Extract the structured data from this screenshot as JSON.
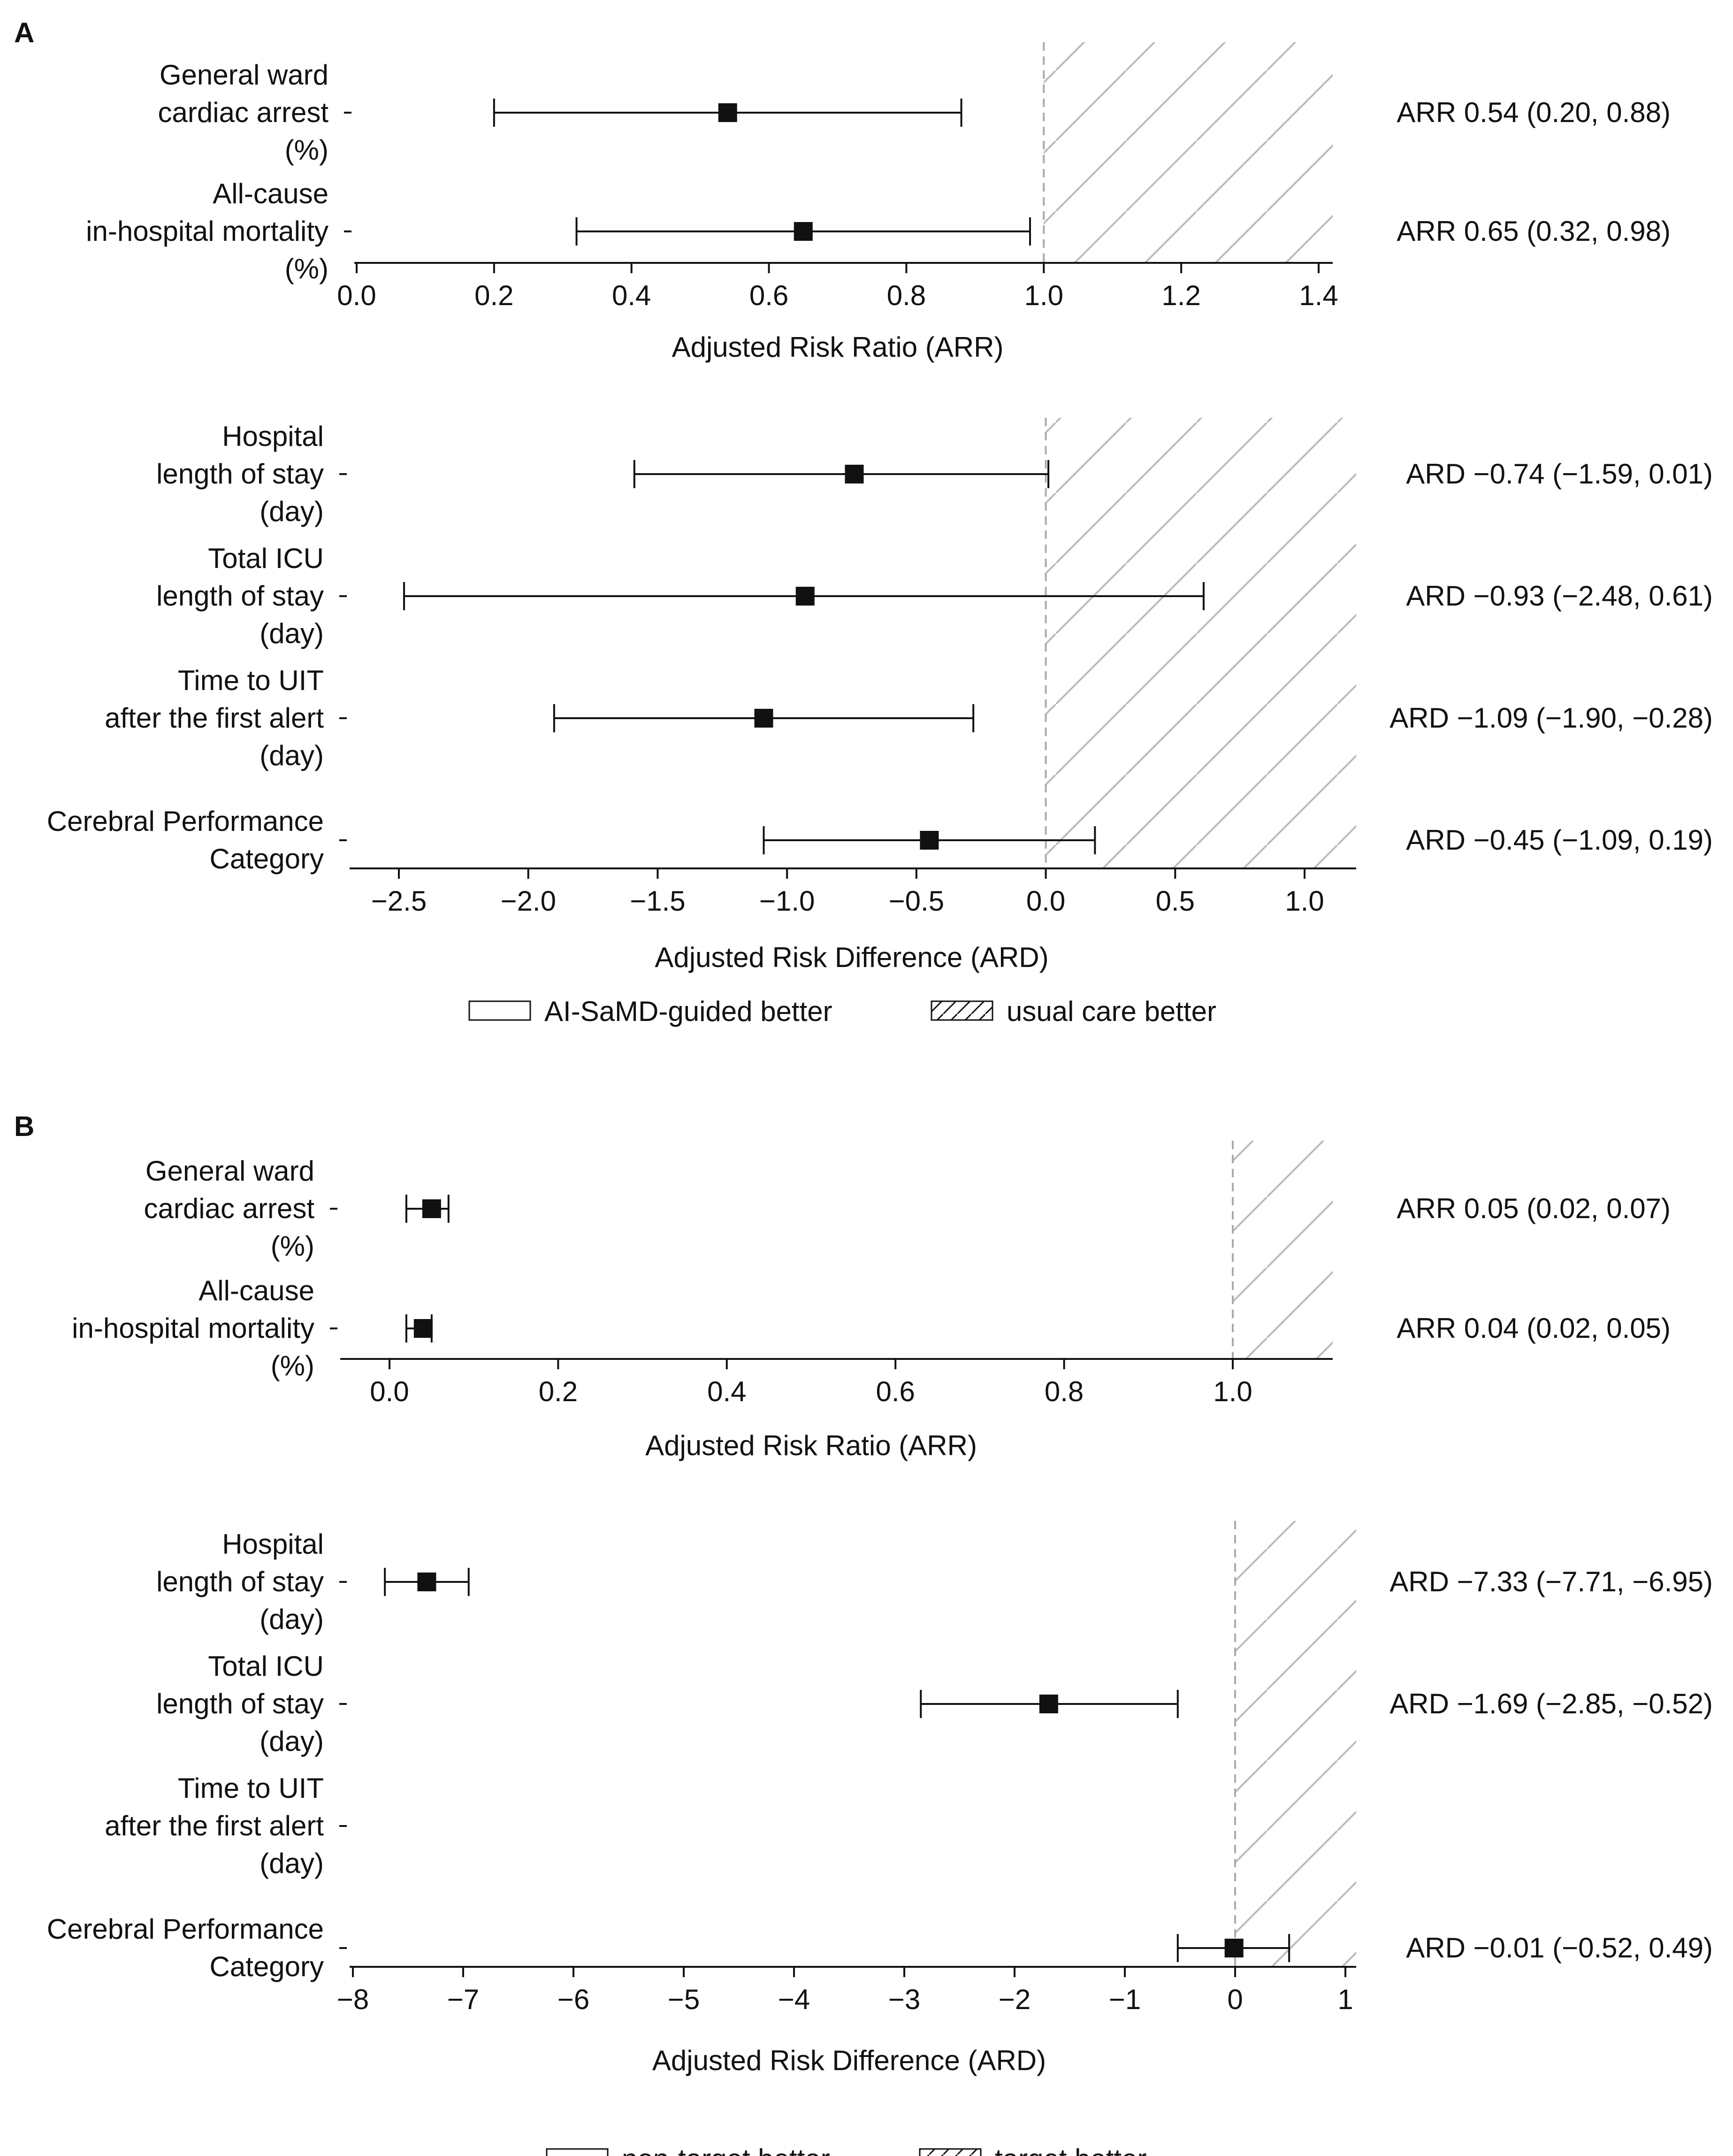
{
  "colors": {
    "ink": "#111111",
    "hatch": "#bbbbbb",
    "reference_line": "#aaaaaa",
    "background": "#ffffff"
  },
  "panels": [
    {
      "letter": "A",
      "legend": {
        "left_label": "AI-SaMD-guided better",
        "right_label": "usual care better"
      },
      "subplots": [
        {
          "id": "A-ratio",
          "xlabel": "Adjusted Risk Ratio (ARR)",
          "xlim": [
            -0.05,
            1.43
          ],
          "ticks": [
            0.0,
            0.2,
            0.4,
            0.6,
            0.8,
            1.0,
            1.2,
            1.4
          ],
          "tick_labels": [
            "0.0",
            "0.2",
            "0.4",
            "0.6",
            "0.8",
            "1.0",
            "1.2",
            "1.4"
          ],
          "reference": 1.0,
          "rows": [
            {
              "label": [
                "General ward",
                "cardiac arrest",
                "(%)"
              ],
              "estimate": 0.54,
              "lower": 0.2,
              "upper": 0.88,
              "annotation": "ARR 0.54 (0.20, 0.88)"
            },
            {
              "label": [
                "All-cause",
                "in-hospital mortality",
                "(%)"
              ],
              "estimate": 0.65,
              "lower": 0.32,
              "upper": 0.98,
              "annotation": "ARR 0.65 (0.32, 0.98)"
            }
          ]
        },
        {
          "id": "A-diff",
          "xlabel": "Adjusted Risk Difference (ARD)",
          "xlim": [
            -2.7,
            1.2
          ],
          "ticks": [
            -2.5,
            -2.0,
            -1.5,
            -1.0,
            -0.5,
            0.0,
            0.5,
            1.0
          ],
          "tick_labels": [
            "−2.5",
            "−2.0",
            "−1.5",
            "−1.0",
            "−0.5",
            "0.0",
            "0.5",
            "1.0"
          ],
          "reference": 0.0,
          "rows": [
            {
              "label": [
                "Hospital",
                "length of stay",
                "(day)"
              ],
              "estimate": -0.74,
              "lower": -1.59,
              "upper": 0.01,
              "annotation": "ARD −0.74 (−1.59, 0.01)"
            },
            {
              "label": [
                "Total ICU",
                "length of stay",
                "(day)"
              ],
              "estimate": -0.93,
              "lower": -2.48,
              "upper": 0.61,
              "annotation": "ARD −0.93 (−2.48, 0.61)"
            },
            {
              "label": [
                "Time to UIT",
                "after the first alert",
                "(day)"
              ],
              "estimate": -1.09,
              "lower": -1.9,
              "upper": -0.28,
              "annotation": "ARD −1.09 (−1.90, −0.28)"
            },
            {
              "label": [
                "Cerebral Performance",
                "Category"
              ],
              "estimate": -0.45,
              "lower": -1.09,
              "upper": 0.19,
              "annotation": "ARD −0.45 (−1.09, 0.19)"
            }
          ]
        }
      ]
    },
    {
      "letter": "B",
      "legend": {
        "left_label": "non-target better",
        "right_label": "target better"
      },
      "subplots": [
        {
          "id": "B-ratio",
          "xlabel": "Adjusted Risk Ratio (ARR)",
          "xlim": [
            -0.04,
            1.115
          ],
          "ticks": [
            0.0,
            0.2,
            0.4,
            0.6,
            0.8,
            1.0
          ],
          "tick_labels": [
            "0.0",
            "0.2",
            "0.4",
            "0.6",
            "0.8",
            "1.0"
          ],
          "reference": 1.0,
          "rows": [
            {
              "label": [
                "General ward",
                "cardiac arrest",
                "(%)"
              ],
              "estimate": 0.05,
              "lower": 0.02,
              "upper": 0.07,
              "annotation": "ARR 0.05 (0.02, 0.07)"
            },
            {
              "label": [
                "All-cause",
                "in-hospital mortality",
                "(%)"
              ],
              "estimate": 0.04,
              "lower": 0.02,
              "upper": 0.05,
              "annotation": "ARR 0.04 (0.02, 0.05)"
            }
          ]
        },
        {
          "id": "B-diff",
          "xlabel": "Adjusted Risk Difference (ARD)",
          "xlim": [
            -8.05,
            1.1
          ],
          "ticks": [
            -8,
            -7,
            -6,
            -5,
            -4,
            -3,
            -2,
            -1,
            0,
            1
          ],
          "tick_labels": [
            "−8",
            "−7",
            "−6",
            "−5",
            "−4",
            "−3",
            "−2",
            "−1",
            "0",
            "1"
          ],
          "reference": 0.0,
          "rows": [
            {
              "label": [
                "Hospital",
                "length of stay",
                "(day)"
              ],
              "estimate": -7.33,
              "lower": -7.71,
              "upper": -6.95,
              "annotation": "ARD −7.33 (−7.71, −6.95)"
            },
            {
              "label": [
                "Total ICU",
                "length of stay",
                "(day)"
              ],
              "estimate": -1.69,
              "lower": -2.85,
              "upper": -0.52,
              "annotation": "ARD −1.69 (−2.85, −0.52)"
            },
            {
              "label": [
                "Time to UIT",
                "after the first alert",
                "(day)"
              ],
              "estimate": null,
              "lower": null,
              "upper": null,
              "annotation": ""
            },
            {
              "label": [
                "Cerebral Performance",
                "Category"
              ],
              "estimate": -0.01,
              "lower": -0.52,
              "upper": 0.49,
              "annotation": "ARD −0.01 (−0.52, 0.49)"
            }
          ]
        }
      ]
    }
  ],
  "chart_data": [
    {
      "type": "forest",
      "panel": "A",
      "xlabel": "Adjusted Risk Ratio (ARR)",
      "xlim": [
        -0.05,
        1.43
      ],
      "reference": 1.0,
      "categories": [
        "General ward cardiac arrest (%)",
        "All-cause in-hospital mortality (%)"
      ],
      "estimate": [
        0.54,
        0.65
      ],
      "lower": [
        0.2,
        0.32
      ],
      "upper": [
        0.88,
        0.98
      ]
    },
    {
      "type": "forest",
      "panel": "A",
      "xlabel": "Adjusted Risk Difference (ARD)",
      "xlim": [
        -2.7,
        1.2
      ],
      "reference": 0.0,
      "categories": [
        "Hospital length of stay (day)",
        "Total ICU length of stay (day)",
        "Time to UIT after the first alert (day)",
        "Cerebral Performance Category"
      ],
      "estimate": [
        -0.74,
        -0.93,
        -1.09,
        -0.45
      ],
      "lower": [
        -1.59,
        -2.48,
        -1.9,
        -1.09
      ],
      "upper": [
        0.01,
        0.61,
        -0.28,
        0.19
      ]
    },
    {
      "type": "forest",
      "panel": "B",
      "xlabel": "Adjusted Risk Ratio (ARR)",
      "xlim": [
        -0.04,
        1.115
      ],
      "reference": 1.0,
      "categories": [
        "General ward cardiac arrest (%)",
        "All-cause in-hospital mortality (%)"
      ],
      "estimate": [
        0.05,
        0.04
      ],
      "lower": [
        0.02,
        0.02
      ],
      "upper": [
        0.07,
        0.05
      ]
    },
    {
      "type": "forest",
      "panel": "B",
      "xlabel": "Adjusted Risk Difference (ARD)",
      "xlim": [
        -8.05,
        1.1
      ],
      "reference": 0.0,
      "categories": [
        "Hospital length of stay (day)",
        "Total ICU length of stay (day)",
        "Time to UIT after the first alert (day)",
        "Cerebral Performance Category"
      ],
      "estimate": [
        -7.33,
        -1.69,
        null,
        -0.01
      ],
      "lower": [
        -7.71,
        -2.85,
        null,
        -0.52
      ],
      "upper": [
        -6.95,
        -0.52,
        null,
        0.49
      ]
    }
  ]
}
